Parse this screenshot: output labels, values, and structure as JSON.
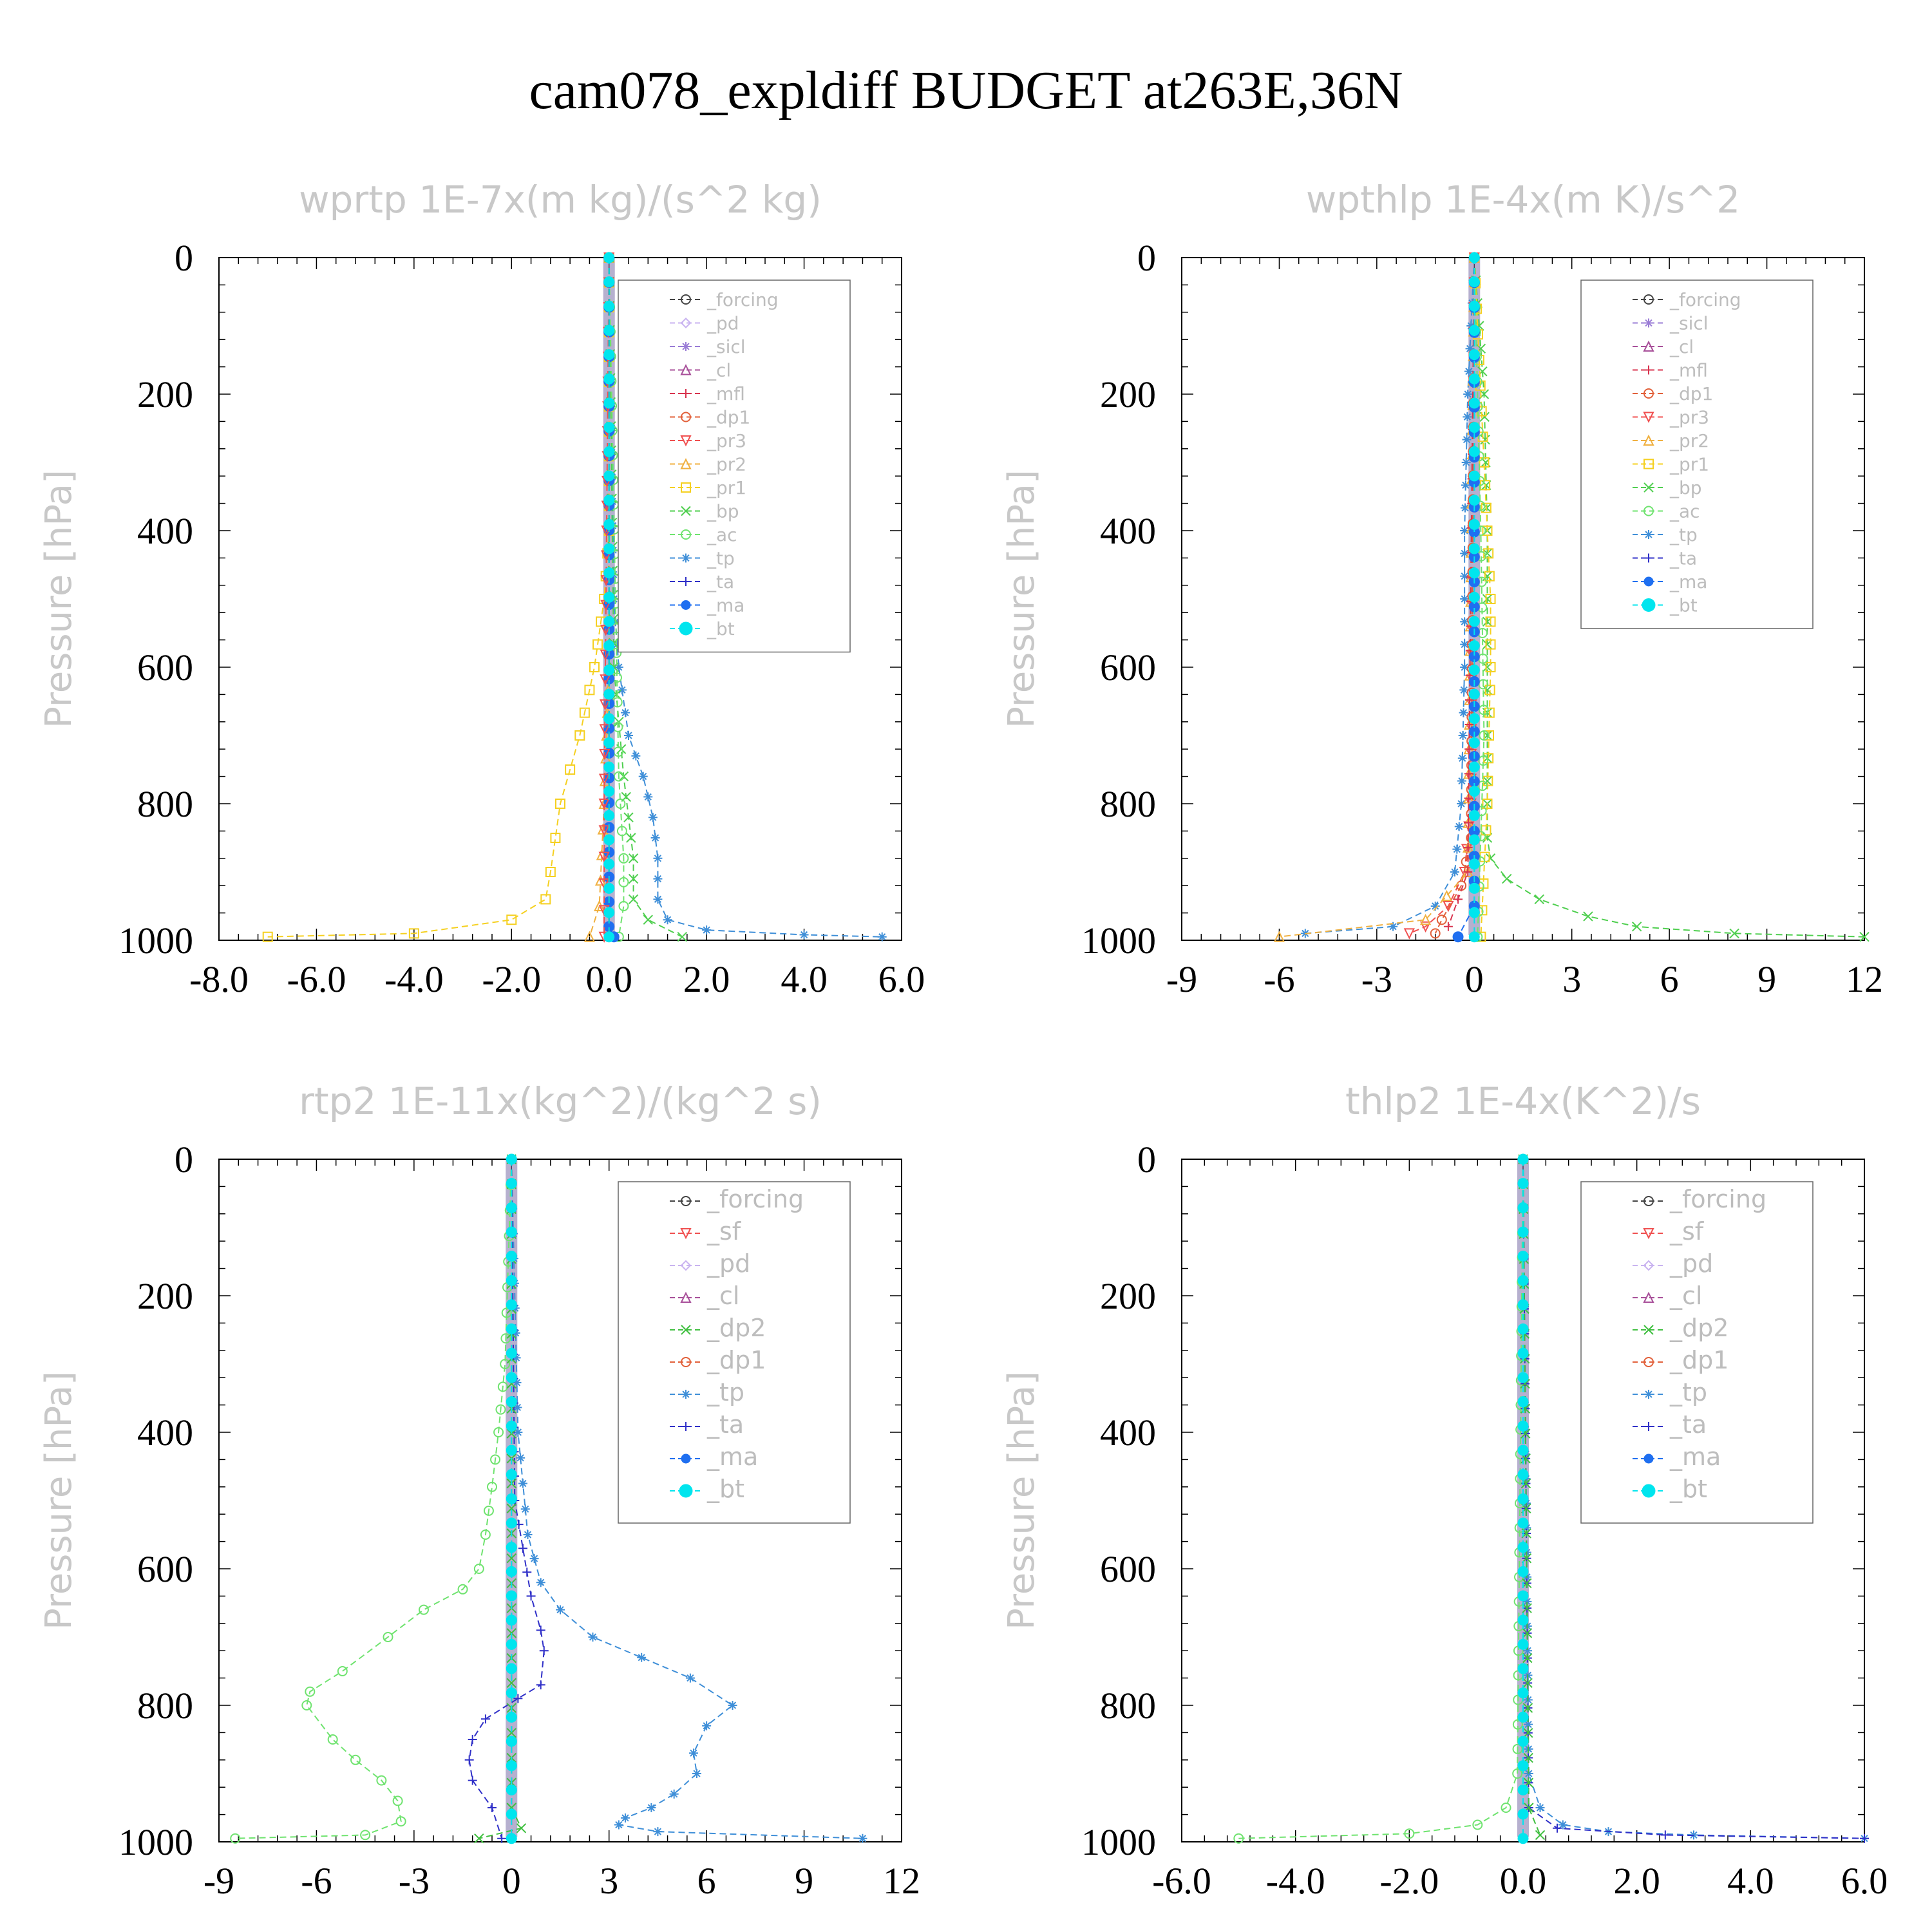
{
  "figure_title": "cam078_expldiff  BUDGET at263E,36N",
  "colors": {
    "forcing": "#444444",
    "pd": "#c9b3f0",
    "sicl": "#9a7cd6",
    "cl": "#a8509a",
    "mfl": "#d8344f",
    "dp1": "#e2603a",
    "pr3": "#f05050",
    "pr2": "#f0b040",
    "pr1": "#f5d020",
    "bp": "#4fcf4f",
    "ac": "#6fe36f",
    "tp": "#3f8fd8",
    "ta": "#3030c8",
    "ma": "#1f6ff0",
    "bt": "#00e5ee",
    "sf": "#f05050",
    "dp2": "#3fbf3f"
  },
  "chart_data": [
    {
      "type": "line",
      "title": "wprtp  1E-7x(m kg)/(s^2 kg)",
      "ylabel": "Pressure [hPa]",
      "xlim": [
        -8,
        6
      ],
      "ylim": [
        0,
        1000
      ],
      "y_inverted": true,
      "xticks": [
        -8,
        -6,
        -4,
        -2,
        0,
        2,
        4,
        6
      ],
      "xtick_labels": [
        "-8.0",
        "-6.0",
        "-4.0",
        "-2.0",
        "0.0",
        "2.0",
        "4.0",
        "6.0"
      ],
      "yticks": [
        0,
        200,
        400,
        600,
        800,
        1000
      ],
      "legend_position": "top-right",
      "legend": [
        "_forcing",
        "_pd",
        "_sicl",
        "_cl",
        "_mfl",
        "_dp1",
        "_pr3",
        "_pr2",
        "_pr1",
        "_bp",
        "_ac",
        "_tp",
        "_ta",
        "_ma",
        "_bt"
      ],
      "series": [
        {
          "name": "_pr1",
          "color_key": "pr1",
          "x": [
            0,
            0,
            -0.1,
            -0.3,
            -0.6,
            -0.8,
            -1.0,
            -1.1,
            -1.2,
            -1.3,
            -2.0,
            -4.0,
            -7.0
          ],
          "y": [
            0,
            400,
            500,
            600,
            700,
            750,
            800,
            850,
            900,
            940,
            970,
            990,
            995
          ]
        },
        {
          "name": "_pr2",
          "color_key": "pr2",
          "x": [
            0,
            0,
            -0.1,
            -0.2,
            -0.4
          ],
          "y": [
            0,
            600,
            800,
            950,
            995
          ]
        },
        {
          "name": "_tp",
          "color_key": "tp",
          "x": [
            0,
            0.1,
            0.2,
            0.4,
            0.7,
            0.9,
            1.0,
            1.0,
            1.2,
            2.0,
            4.0,
            5.6
          ],
          "y": [
            0,
            500,
            600,
            700,
            760,
            820,
            880,
            940,
            970,
            985,
            992,
            995
          ]
        },
        {
          "name": "_bp",
          "color_key": "bp",
          "x": [
            0,
            0.1,
            0.3,
            0.4,
            0.5,
            0.5,
            0.8,
            1.5
          ],
          "y": [
            0,
            600,
            760,
            820,
            880,
            940,
            970,
            995
          ]
        },
        {
          "name": "_ac",
          "color_key": "ac",
          "x": [
            0,
            0.2,
            0.3,
            0.3,
            0.2
          ],
          "y": [
            0,
            760,
            880,
            950,
            995
          ]
        },
        {
          "name": "_ma",
          "color_key": "ma",
          "x": [
            0,
            0,
            0.1
          ],
          "y": [
            0,
            980,
            995
          ]
        },
        {
          "name": "_pr3",
          "color_key": "pr3",
          "x": [
            0,
            -0.1,
            -0.1
          ],
          "y": [
            0,
            800,
            995
          ]
        },
        {
          "name": "_forcing",
          "color_key": "forcing",
          "x": [
            0,
            0
          ],
          "y": [
            0,
            995
          ]
        },
        {
          "name": "_bt",
          "color_key": "bt",
          "x": [
            0,
            0
          ],
          "y": [
            0,
            995
          ]
        }
      ]
    },
    {
      "type": "line",
      "title": "wpthlp  1E-4x(m K)/s^2",
      "ylabel": "Pressure [hPa]",
      "xlim": [
        -9,
        12
      ],
      "ylim": [
        0,
        1000
      ],
      "y_inverted": true,
      "xticks": [
        -9,
        -6,
        -3,
        0,
        3,
        6,
        9,
        12
      ],
      "xtick_labels": [
        "-9",
        "-6",
        "-3",
        "0",
        "3",
        "6",
        "9",
        "12"
      ],
      "yticks": [
        0,
        200,
        400,
        600,
        800,
        1000
      ],
      "legend_position": "top-right",
      "legend": [
        "_forcing",
        "_sicl",
        "_cl",
        "_mfl",
        "_dp1",
        "_pr3",
        "_pr2",
        "_pr1",
        "_bp",
        "_ac",
        "_tp",
        "_ta",
        "_ma",
        "_bt"
      ],
      "series": [
        {
          "name": "_bp",
          "color_key": "bp",
          "x": [
            0,
            0.3,
            0.4,
            0.4,
            0.4,
            0.4,
            0.5,
            1.0,
            2.0,
            3.5,
            5.0,
            8.0,
            12.0
          ],
          "y": [
            0,
            200,
            400,
            600,
            800,
            850,
            880,
            910,
            940,
            965,
            980,
            990,
            995
          ]
        },
        {
          "name": "_pr1",
          "color_key": "pr1",
          "x": [
            0,
            0.3,
            0.5,
            0.5,
            0.4,
            0.2
          ],
          "y": [
            0,
            300,
            500,
            600,
            800,
            995
          ]
        },
        {
          "name": "_ac",
          "color_key": "ac",
          "x": [
            0,
            0.2,
            0.3,
            0.1
          ],
          "y": [
            0,
            400,
            700,
            995
          ]
        },
        {
          "name": "_tp",
          "color_key": "tp",
          "x": [
            0,
            -0.2,
            -0.3,
            -0.3,
            -0.4,
            -0.6,
            -1.2,
            -2.5,
            -5.2
          ],
          "y": [
            0,
            200,
            400,
            600,
            800,
            900,
            950,
            980,
            990
          ]
        },
        {
          "name": "_pr3",
          "color_key": "pr3",
          "x": [
            0,
            -0.1,
            -0.3,
            -0.8,
            -1.5,
            -2.0
          ],
          "y": [
            0,
            800,
            900,
            950,
            980,
            990
          ]
        },
        {
          "name": "_dp1",
          "color_key": "dp1",
          "x": [
            0,
            -0.1,
            -0.4,
            -1.0,
            -1.2
          ],
          "y": [
            0,
            850,
            920,
            970,
            990
          ]
        },
        {
          "name": "_pr2",
          "color_key": "pr2",
          "x": [
            0,
            -0.2,
            -1.5,
            -6.0
          ],
          "y": [
            0,
            900,
            970,
            995
          ]
        },
        {
          "name": "_mfl",
          "color_key": "mfl",
          "x": [
            0,
            -0.2,
            -0.8
          ],
          "y": [
            0,
            900,
            980
          ]
        },
        {
          "name": "_ma",
          "color_key": "ma",
          "x": [
            0,
            0,
            -0.5
          ],
          "y": [
            0,
            950,
            995
          ]
        },
        {
          "name": "_bt",
          "color_key": "bt",
          "x": [
            0,
            0
          ],
          "y": [
            0,
            995
          ]
        }
      ]
    },
    {
      "type": "line",
      "title": "rtp2  1E-11x(kg^2)/(kg^2 s)",
      "ylabel": "Pressure [hPa]",
      "xlim": [
        -9,
        12
      ],
      "ylim": [
        0,
        1000
      ],
      "y_inverted": true,
      "xticks": [
        -9,
        -6,
        -3,
        0,
        3,
        6,
        9,
        12
      ],
      "xtick_labels": [
        "-9",
        "-6",
        "-3",
        "0",
        "3",
        "6",
        "9",
        "12"
      ],
      "yticks": [
        0,
        200,
        400,
        600,
        800,
        1000
      ],
      "legend_position": "top-right",
      "legend": [
        "_forcing",
        "_sf",
        "_pd",
        "_cl",
        "_dp2",
        "_dp1",
        "_tp",
        "_ta",
        "_ma",
        "_bt"
      ],
      "series": [
        {
          "name": "_dp1",
          "color_key": "ac",
          "x": [
            0,
            -0.2,
            -0.4,
            -0.6,
            -0.8,
            -1.0,
            -1.5,
            -2.7,
            -3.8,
            -5.2,
            -6.2,
            -6.3,
            -5.5,
            -4.8,
            -4.0,
            -3.5,
            -3.4,
            -4.5,
            -8.5
          ],
          "y": [
            0,
            300,
            400,
            480,
            550,
            600,
            630,
            660,
            700,
            750,
            780,
            800,
            850,
            880,
            910,
            940,
            970,
            990,
            995
          ]
        },
        {
          "name": "_tp",
          "color_key": "tp",
          "x": [
            0,
            0.2,
            0.5,
            0.9,
            1.5,
            2.5,
            4.0,
            5.5,
            6.8,
            6.0,
            5.6,
            5.7,
            5.0,
            4.3,
            3.5,
            3.3,
            4.5,
            10.8
          ],
          "y": [
            0,
            400,
            550,
            620,
            660,
            700,
            730,
            760,
            800,
            830,
            870,
            900,
            930,
            950,
            965,
            975,
            985,
            995
          ]
        },
        {
          "name": "_ta",
          "color_key": "ta",
          "x": [
            0,
            0.1,
            0.6,
            0.9,
            1.0,
            0.9,
            0.2,
            -0.8,
            -1.2,
            -1.3,
            -1.2,
            -0.6,
            -0.3
          ],
          "y": [
            0,
            500,
            640,
            690,
            720,
            770,
            790,
            820,
            850,
            880,
            910,
            950,
            995
          ]
        },
        {
          "name": "_dp2",
          "color_key": "dp2",
          "x": [
            0,
            0,
            0.3,
            -1.0
          ],
          "y": [
            0,
            950,
            980,
            995
          ]
        },
        {
          "name": "_forcing",
          "color_key": "mfl",
          "x": [
            0,
            0
          ],
          "y": [
            0,
            995
          ]
        },
        {
          "name": "_bt",
          "color_key": "bt",
          "x": [
            0,
            0
          ],
          "y": [
            0,
            995
          ]
        }
      ]
    },
    {
      "type": "line",
      "title": "thlp2  1E-4x(K^2)/s",
      "ylabel": "Pressure [hPa]",
      "xlim": [
        -6,
        6
      ],
      "ylim": [
        0,
        1000
      ],
      "y_inverted": true,
      "xticks": [
        -6,
        -4,
        -2,
        0,
        2,
        4,
        6
      ],
      "xtick_labels": [
        "-6.0",
        "-4.0",
        "-2.0",
        "0.0",
        "2.0",
        "4.0",
        "6.0"
      ],
      "yticks": [
        0,
        200,
        400,
        600,
        800,
        1000
      ],
      "legend_position": "top-right",
      "legend": [
        "_forcing",
        "_sf",
        "_pd",
        "_cl",
        "_dp2",
        "_dp1",
        "_tp",
        "_ta",
        "_ma",
        "_bt"
      ],
      "series": [
        {
          "name": "_dp1",
          "color_key": "ac",
          "x": [
            0,
            -0.1,
            -0.3,
            -0.8,
            -2.0,
            -5.0
          ],
          "y": [
            0,
            900,
            950,
            975,
            988,
            995
          ]
        },
        {
          "name": "_tp",
          "color_key": "tp",
          "x": [
            0,
            0.1,
            0.3,
            0.7,
            1.5,
            3.0,
            6.0
          ],
          "y": [
            0,
            900,
            950,
            975,
            985,
            990,
            995
          ]
        },
        {
          "name": "_ta",
          "color_key": "ta",
          "x": [
            0,
            0.1,
            0.6,
            2.5,
            6.0
          ],
          "y": [
            0,
            950,
            980,
            990,
            995
          ]
        },
        {
          "name": "_dp2",
          "color_key": "dp2",
          "x": [
            0,
            0.1,
            0.3
          ],
          "y": [
            0,
            950,
            990
          ]
        },
        {
          "name": "_forcing",
          "color_key": "mfl",
          "x": [
            0,
            0
          ],
          "y": [
            0,
            995
          ]
        },
        {
          "name": "_bt",
          "color_key": "bt",
          "x": [
            0,
            0
          ],
          "y": [
            0,
            995
          ]
        }
      ]
    }
  ]
}
